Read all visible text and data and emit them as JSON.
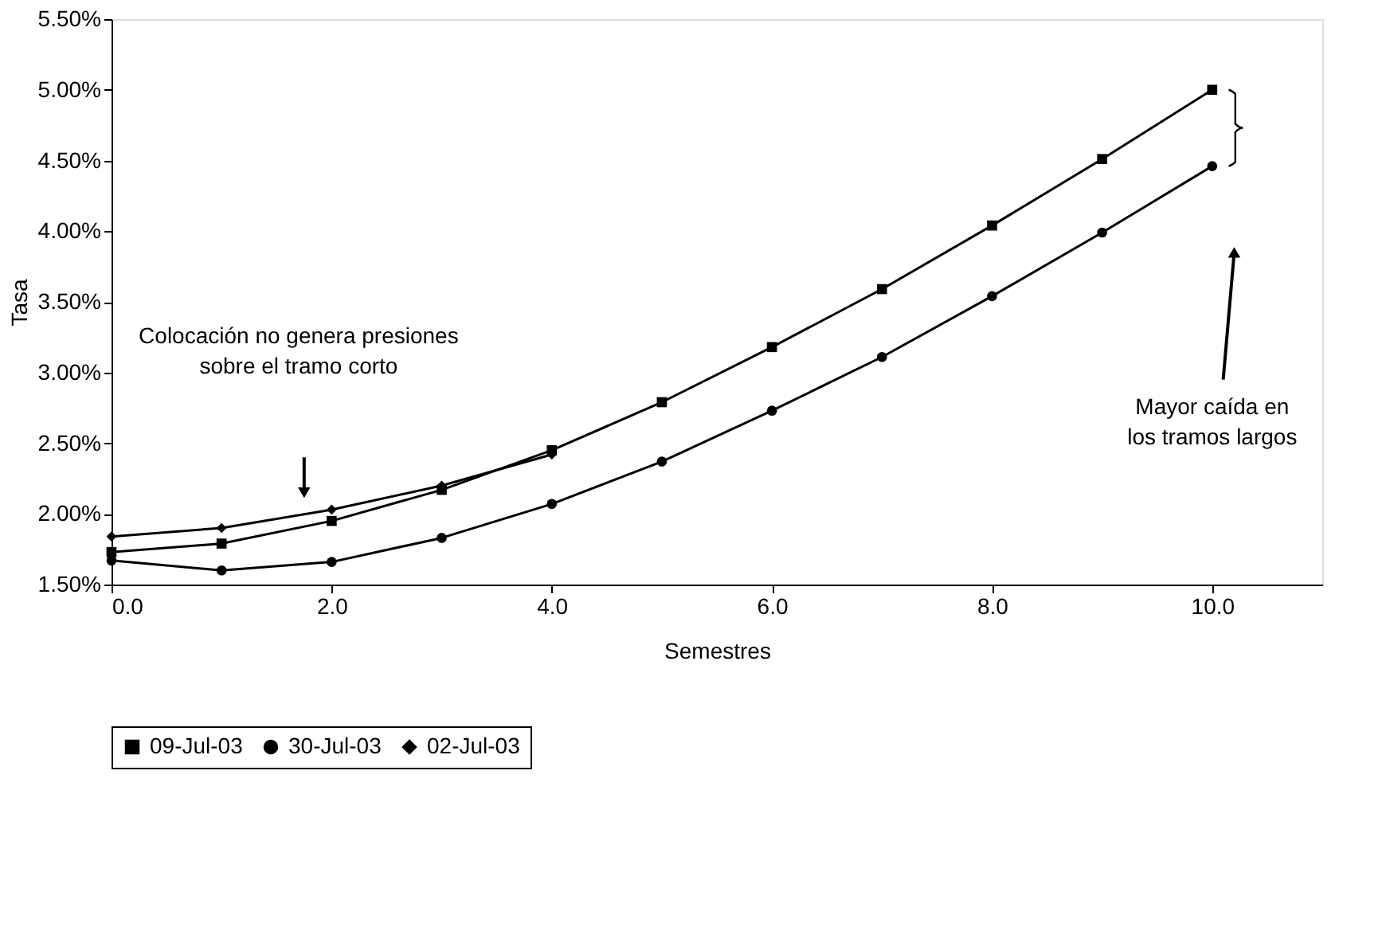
{
  "chart_data": {
    "type": "line",
    "xlabel": "Semestres",
    "ylabel": "Tasa",
    "xlim": [
      0,
      11
    ],
    "xticks": [
      {
        "value": 0,
        "label": "0.0"
      },
      {
        "value": 2,
        "label": "2.0"
      },
      {
        "value": 4,
        "label": "4.0"
      },
      {
        "value": 6,
        "label": "6.0"
      },
      {
        "value": 8,
        "label": "8.0"
      },
      {
        "value": 10,
        "label": "10.0"
      }
    ],
    "ylim": [
      1.5,
      5.5
    ],
    "yticks": [
      {
        "value": 1.5,
        "label": "1.50%"
      },
      {
        "value": 2.0,
        "label": "2.00%"
      },
      {
        "value": 2.5,
        "label": "2.50%"
      },
      {
        "value": 3.0,
        "label": "3.00%"
      },
      {
        "value": 3.5,
        "label": "3.50%"
      },
      {
        "value": 4.0,
        "label": "4.00%"
      },
      {
        "value": 4.5,
        "label": "4.50%"
      },
      {
        "value": 5.0,
        "label": "5.00%"
      },
      {
        "value": 5.5,
        "label": "5.50%"
      }
    ],
    "grid": false,
    "legend": "bottom",
    "line_style": "solid",
    "series": [
      {
        "name": "09-Jul-03",
        "color": "#000000",
        "marker": "square",
        "x": [
          0,
          1,
          2,
          3,
          4,
          5,
          6,
          7,
          8,
          9,
          10
        ],
        "values": [
          1.73,
          1.79,
          1.95,
          2.17,
          2.45,
          2.79,
          3.18,
          3.59,
          4.04,
          4.51,
          5.0
        ]
      },
      {
        "name": "30-Jul-03",
        "color": "#000000",
        "marker": "circle",
        "x": [
          0,
          1,
          2,
          3,
          4,
          5,
          6,
          7,
          8,
          9,
          10
        ],
        "values": [
          1.67,
          1.6,
          1.66,
          1.83,
          2.07,
          2.37,
          2.73,
          3.11,
          3.54,
          3.99,
          4.46
        ]
      },
      {
        "name": "02-Jul-03",
        "color": "#000000",
        "marker": "diamond",
        "x": [
          0,
          1,
          2,
          3,
          4
        ],
        "values": [
          1.84,
          1.9,
          2.03,
          2.2,
          2.42
        ]
      }
    ],
    "annotations": [
      "Colocación no genera presiones\nsobre el tramo corto",
      "Mayor caída en\nlos tramos largos"
    ]
  }
}
